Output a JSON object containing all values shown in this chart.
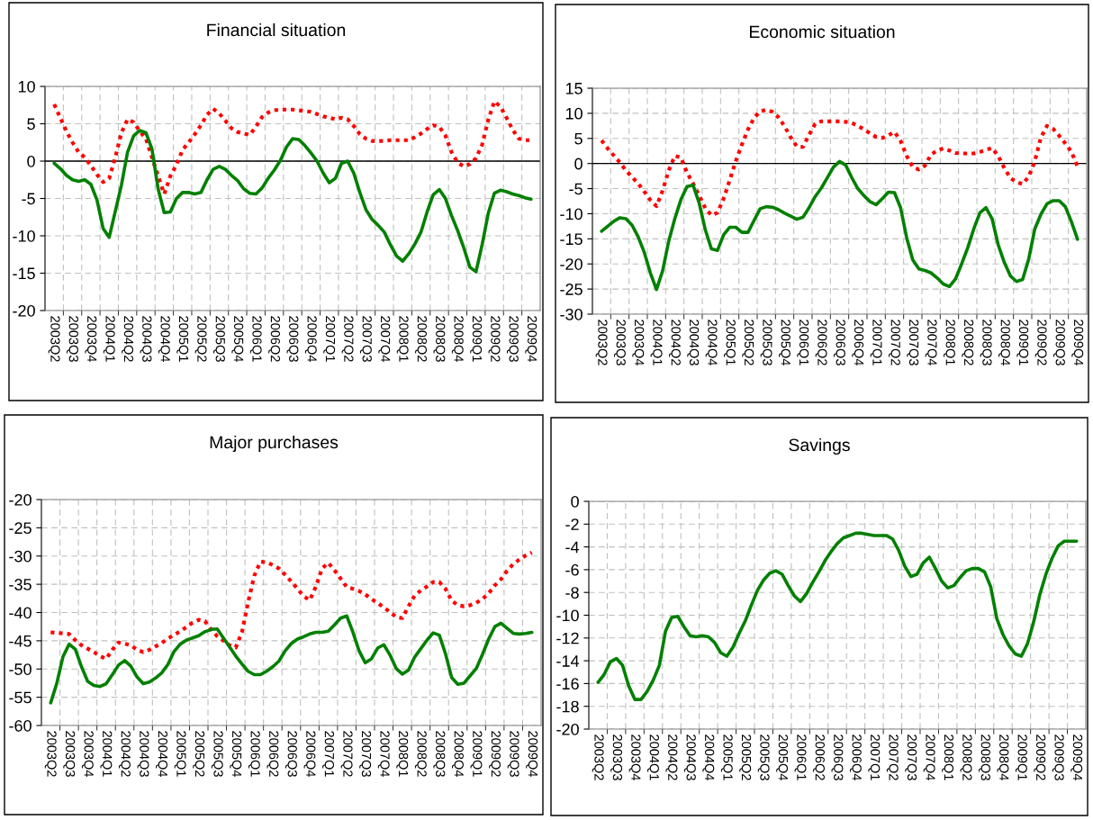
{
  "chart_data": [
    {
      "type": "line",
      "title": "Financial situation",
      "categories": [
        "2003Q2",
        null,
        null,
        "2003Q3",
        null,
        null,
        "2003Q4",
        null,
        null,
        "2004Q1",
        null,
        null,
        "2004Q2",
        null,
        null,
        "2004Q3",
        null,
        null,
        "2004Q4",
        null,
        null,
        "2005Q1",
        null,
        null,
        "2005Q2",
        null,
        null,
        "2005Q3",
        null,
        null,
        "2005Q4",
        null,
        null,
        "2006Q1",
        null,
        null,
        "2006Q2",
        null,
        null,
        "2006Q3",
        null,
        null,
        "2006Q4",
        null,
        null,
        "2007Q1",
        null,
        null,
        "2007Q2",
        null,
        null,
        "2007Q3",
        null,
        null,
        "2007Q4",
        null,
        null,
        "2008Q1",
        null,
        null,
        "2008Q2",
        null,
        null,
        "2008Q3",
        null,
        null,
        "2008Q4",
        null,
        null,
        "2009Q1",
        null,
        null,
        "2009Q2",
        null,
        null,
        "2009Q3",
        null,
        null,
        "2009Q4"
      ],
      "series": [
        {
          "color": "#ff0000",
          "line_style": "dotted",
          "values": [
            7.6,
            5.8,
            4.0,
            2.5,
            1.2,
            0.5,
            -0.6,
            -1.8,
            -2.8,
            -2.3,
            0.5,
            3.8,
            5.6,
            5.2,
            4.0,
            3.0,
            0.5,
            -2.0,
            -4.4,
            -2.0,
            -0.5,
            1.5,
            2.5,
            3.6,
            4.8,
            6.2,
            7.0,
            6.4,
            5.4,
            4.4,
            3.9,
            3.7,
            3.5,
            4.6,
            5.9,
            6.5,
            6.8,
            6.9,
            6.9,
            6.9,
            6.8,
            6.7,
            6.6,
            6.3,
            6.0,
            5.8,
            5.6,
            5.8,
            5.6,
            4.7,
            3.6,
            3.0,
            2.7,
            2.7,
            2.7,
            2.8,
            2.8,
            2.8,
            2.8,
            3.2,
            3.7,
            4.3,
            4.8,
            4.6,
            3.4,
            1.2,
            -0.2,
            -0.7,
            -0.4,
            0.4,
            2.2,
            5.5,
            8.0,
            7.3,
            5.8,
            4.2,
            3.0,
            2.8,
            2.8
          ]
        },
        {
          "color": "#008000",
          "line_style": "solid",
          "values": [
            -0.3,
            -1.0,
            -1.9,
            -2.5,
            -2.7,
            -2.5,
            -3.1,
            -5.2,
            -9.0,
            -10.2,
            -6.7,
            -3.2,
            1.2,
            3.4,
            4.1,
            3.8,
            1.6,
            -3.7,
            -6.9,
            -6.8,
            -5.0,
            -4.2,
            -4.2,
            -4.4,
            -4.2,
            -2.5,
            -1.1,
            -0.7,
            -1.1,
            -1.9,
            -2.6,
            -3.7,
            -4.3,
            -4.4,
            -3.6,
            -2.3,
            -1.2,
            0.1,
            1.9,
            3.0,
            2.9,
            2.1,
            1.1,
            0.0,
            -1.6,
            -2.9,
            -2.3,
            -0.3,
            0.0,
            -1.6,
            -4.2,
            -6.5,
            -7.8,
            -8.6,
            -9.5,
            -11.2,
            -12.7,
            -13.4,
            -12.4,
            -11.1,
            -9.5,
            -6.8,
            -4.5,
            -3.8,
            -5.0,
            -7.3,
            -9.3,
            -11.6,
            -14.2,
            -14.8,
            -11.2,
            -7.0,
            -4.3,
            -3.9,
            -4.1,
            -4.4,
            -4.6,
            -4.9,
            -5.1
          ]
        }
      ],
      "ylim": [
        -20,
        10
      ],
      "yticks": [
        -20,
        -15,
        -10,
        -5,
        0,
        5,
        10
      ],
      "grid": true,
      "marker": "none",
      "ref_lines": [
        {
          "axis": "y",
          "value": 0,
          "color": "#000000"
        }
      ]
    },
    {
      "type": "line",
      "title": "Economic situation",
      "categories": [
        "2003Q2",
        null,
        null,
        "2003Q3",
        null,
        null,
        "2003Q4",
        null,
        null,
        "2004Q1",
        null,
        null,
        "2004Q2",
        null,
        null,
        "2004Q3",
        null,
        null,
        "2004Q4",
        null,
        null,
        "2005Q1",
        null,
        null,
        "2005Q2",
        null,
        null,
        "2005Q3",
        null,
        null,
        "2005Q4",
        null,
        null,
        "2006Q1",
        null,
        null,
        "2006Q2",
        null,
        null,
        "2006Q3",
        null,
        null,
        "2006Q4",
        null,
        null,
        "2007Q1",
        null,
        null,
        "2007Q2",
        null,
        null,
        "2007Q3",
        null,
        null,
        "2007Q4",
        null,
        null,
        "2008Q1",
        null,
        null,
        "2008Q2",
        null,
        null,
        "2008Q3",
        null,
        null,
        "2008Q4",
        null,
        null,
        "2009Q1",
        null,
        null,
        "2009Q2",
        null,
        null,
        "2009Q3",
        null,
        null,
        "2009Q4"
      ],
      "series": [
        {
          "color": "#ff0000",
          "line_style": "dotted",
          "values": [
            4.6,
            3.0,
            1.6,
            0.2,
            -1.4,
            -2.7,
            -4.0,
            -5.6,
            -7.3,
            -8.5,
            -5.4,
            -1.4,
            1.5,
            1.2,
            -1.8,
            -4.0,
            -6.4,
            -8.9,
            -10.3,
            -9.8,
            -7.0,
            -3.3,
            0.5,
            3.8,
            6.8,
            9.1,
            10.4,
            10.7,
            10.3,
            9.2,
            7.4,
            5.2,
            3.4,
            3.3,
            5.7,
            7.9,
            8.4,
            8.4,
            8.4,
            8.4,
            8.3,
            8.1,
            7.5,
            6.8,
            6.0,
            5.3,
            5.1,
            5.6,
            6.3,
            4.5,
            1.5,
            -0.7,
            -1.2,
            -0.4,
            1.8,
            2.6,
            3.0,
            2.6,
            2.1,
            2.0,
            2.0,
            2.0,
            2.3,
            2.7,
            3.1,
            1.5,
            -0.9,
            -2.9,
            -3.7,
            -4.1,
            -2.6,
            0.5,
            5.2,
            7.5,
            6.9,
            5.5,
            4.0,
            2.3,
            -0.6
          ]
        },
        {
          "color": "#008000",
          "line_style": "solid",
          "values": [
            -13.5,
            -12.5,
            -11.5,
            -10.8,
            -11.0,
            -12.3,
            -14.6,
            -17.7,
            -21.8,
            -25.1,
            -21.4,
            -15.5,
            -11.0,
            -7.2,
            -4.6,
            -4.3,
            -7.9,
            -13.2,
            -17.0,
            -17.3,
            -14.2,
            -12.7,
            -12.7,
            -13.7,
            -13.7,
            -11.3,
            -9.0,
            -8.6,
            -8.7,
            -9.2,
            -9.9,
            -10.5,
            -11.1,
            -10.7,
            -8.8,
            -6.6,
            -4.9,
            -2.8,
            -0.7,
            0.4,
            -0.3,
            -2.8,
            -5.0,
            -6.4,
            -7.6,
            -8.2,
            -7.0,
            -5.7,
            -5.8,
            -8.8,
            -14.8,
            -19.2,
            -21.0,
            -21.3,
            -21.8,
            -22.8,
            -24.0,
            -24.5,
            -23.0,
            -20.0,
            -16.8,
            -13.0,
            -9.8,
            -8.8,
            -11.0,
            -16.2,
            -19.7,
            -22.4,
            -23.5,
            -23.1,
            -19.0,
            -13.0,
            -10.1,
            -8.0,
            -7.4,
            -7.4,
            -8.6,
            -11.6,
            -15.1
          ]
        }
      ],
      "ylim": [
        -30,
        15
      ],
      "yticks": [
        -30,
        -25,
        -20,
        -15,
        -10,
        -5,
        0,
        5,
        10,
        15
      ],
      "grid": true,
      "marker": "none",
      "ref_lines": [
        {
          "axis": "y",
          "value": 0,
          "color": "#000000"
        }
      ]
    },
    {
      "type": "line",
      "title": "Major purchases",
      "categories": [
        "2003Q2",
        null,
        null,
        "2003Q3",
        null,
        null,
        "2003Q4",
        null,
        null,
        "2004Q1",
        null,
        null,
        "2004Q2",
        null,
        null,
        "2004Q3",
        null,
        null,
        "2004Q4",
        null,
        null,
        "2005Q1",
        null,
        null,
        "2005Q2",
        null,
        null,
        "2005Q3",
        null,
        null,
        "2005Q4",
        null,
        null,
        "2006Q1",
        null,
        null,
        "2006Q2",
        null,
        null,
        "2006Q3",
        null,
        null,
        "2006Q4",
        null,
        null,
        "2007Q1",
        null,
        null,
        "2007Q2",
        null,
        null,
        "2007Q3",
        null,
        null,
        "2007Q4",
        null,
        null,
        "2008Q1",
        null,
        null,
        "2008Q2",
        null,
        null,
        "2008Q3",
        null,
        null,
        "2008Q4",
        null,
        null,
        "2009Q1",
        null,
        null,
        "2009Q2",
        null,
        null,
        "2009Q3",
        null,
        null,
        "2009Q4"
      ],
      "series": [
        {
          "color": "#ff0000",
          "line_style": "dotted",
          "values": [
            -43.5,
            -43.6,
            -43.7,
            -43.8,
            -44.9,
            -45.8,
            -46.4,
            -47.0,
            -47.7,
            -48.2,
            -46.6,
            -45.3,
            -45.5,
            -45.8,
            -46.6,
            -47.0,
            -46.6,
            -46.0,
            -45.4,
            -44.6,
            -44.0,
            -43.3,
            -42.6,
            -41.8,
            -41.3,
            -41.5,
            -43.0,
            -44.2,
            -45.0,
            -45.8,
            -46.2,
            -43.5,
            -38.2,
            -33.5,
            -31.0,
            -31.1,
            -31.6,
            -32.2,
            -33.3,
            -34.5,
            -35.8,
            -37.1,
            -37.8,
            -35.4,
            -32.2,
            -31.2,
            -32.5,
            -34.0,
            -35.5,
            -35.8,
            -36.2,
            -36.8,
            -37.6,
            -38.3,
            -39.1,
            -39.9,
            -40.8,
            -41.0,
            -38.9,
            -37.0,
            -36.1,
            -35.4,
            -34.6,
            -34.6,
            -35.8,
            -37.9,
            -38.7,
            -38.9,
            -38.7,
            -38.3,
            -37.6,
            -36.6,
            -35.2,
            -34.1,
            -32.6,
            -31.4,
            -30.6,
            -29.9,
            -29.4
          ]
        },
        {
          "color": "#008000",
          "line_style": "solid",
          "values": [
            -56.0,
            -52.5,
            -47.8,
            -45.6,
            -46.5,
            -49.6,
            -52.2,
            -52.9,
            -53.1,
            -52.6,
            -51.0,
            -49.3,
            -48.5,
            -49.5,
            -51.4,
            -52.6,
            -52.3,
            -51.6,
            -50.7,
            -49.2,
            -46.9,
            -45.6,
            -44.9,
            -44.5,
            -44.1,
            -43.4,
            -43.0,
            -42.9,
            -44.5,
            -46.1,
            -47.7,
            -49.1,
            -50.4,
            -51.0,
            -51.0,
            -50.4,
            -49.6,
            -48.6,
            -46.8,
            -45.5,
            -44.7,
            -44.3,
            -43.8,
            -43.5,
            -43.5,
            -43.3,
            -42.2,
            -41.0,
            -40.6,
            -43.5,
            -46.8,
            -48.9,
            -48.2,
            -46.3,
            -45.7,
            -47.5,
            -49.9,
            -50.9,
            -50.2,
            -47.9,
            -46.4,
            -44.9,
            -43.6,
            -44.0,
            -47.3,
            -51.5,
            -52.7,
            -52.5,
            -51.2,
            -49.9,
            -47.4,
            -44.7,
            -42.5,
            -41.9,
            -42.8,
            -43.7,
            -43.8,
            -43.7,
            -43.5
          ]
        }
      ],
      "ylim": [
        -60,
        -20
      ],
      "yticks": [
        -60,
        -55,
        -50,
        -45,
        -40,
        -35,
        -30,
        -25,
        -20
      ],
      "grid": true,
      "marker": "none"
    },
    {
      "type": "line",
      "title": "Savings",
      "categories": [
        "2003Q2",
        null,
        null,
        "2003Q3",
        null,
        null,
        "2003Q4",
        null,
        null,
        "2004Q1",
        null,
        null,
        "2004Q2",
        null,
        null,
        "2004Q3",
        null,
        null,
        "2004Q4",
        null,
        null,
        "2005Q1",
        null,
        null,
        "2005Q2",
        null,
        null,
        "2005Q3",
        null,
        null,
        "2005Q4",
        null,
        null,
        "2006Q1",
        null,
        null,
        "2006Q2",
        null,
        null,
        "2006Q3",
        null,
        null,
        "2006Q4",
        null,
        null,
        "2007Q1",
        null,
        null,
        "2007Q2",
        null,
        null,
        "2007Q3",
        null,
        null,
        "2007Q4",
        null,
        null,
        "2008Q1",
        null,
        null,
        "2008Q2",
        null,
        null,
        "2008Q3",
        null,
        null,
        "2008Q4",
        null,
        null,
        "2009Q1",
        null,
        null,
        "2009Q2",
        null,
        null,
        "2009Q3",
        null,
        null,
        "2009Q4"
      ],
      "series": [
        {
          "color": "#008000",
          "line_style": "solid",
          "values": [
            -15.9,
            -15.2,
            -14.1,
            -13.8,
            -14.4,
            -16.2,
            -17.4,
            -17.4,
            -16.7,
            -15.7,
            -14.4,
            -11.4,
            -10.2,
            -10.1,
            -11.0,
            -11.8,
            -11.9,
            -11.8,
            -11.9,
            -12.4,
            -13.3,
            -13.6,
            -12.8,
            -11.6,
            -10.5,
            -9.1,
            -7.8,
            -6.9,
            -6.3,
            -6.1,
            -6.4,
            -7.4,
            -8.3,
            -8.8,
            -8.1,
            -7.1,
            -6.2,
            -5.2,
            -4.4,
            -3.7,
            -3.2,
            -3.0,
            -2.8,
            -2.8,
            -2.9,
            -3.0,
            -3.0,
            -3.0,
            -3.3,
            -4.3,
            -5.7,
            -6.6,
            -6.4,
            -5.4,
            -4.9,
            -5.9,
            -7.0,
            -7.6,
            -7.4,
            -6.7,
            -6.1,
            -5.9,
            -5.9,
            -6.2,
            -7.5,
            -10.3,
            -11.7,
            -12.7,
            -13.4,
            -13.6,
            -12.5,
            -10.6,
            -8.2,
            -6.4,
            -5.0,
            -3.9,
            -3.5,
            -3.5,
            -3.5
          ]
        }
      ],
      "ylim": [
        -20,
        0
      ],
      "yticks": [
        -20,
        -18,
        -16,
        -14,
        -12,
        -10,
        -8,
        -6,
        -4,
        -2,
        0
      ],
      "grid": true,
      "marker": "none"
    }
  ]
}
